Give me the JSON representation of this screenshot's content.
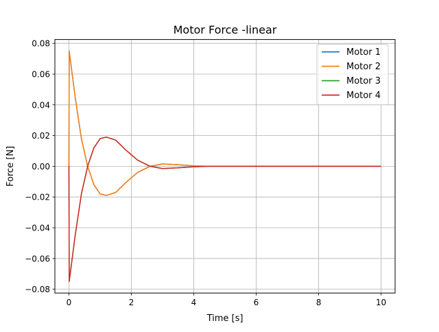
{
  "chart_data": {
    "type": "line",
    "title": "Motor Force -linear",
    "xlabel": "Time [s]",
    "ylabel": "Force [N]",
    "xlim": [
      -0.45,
      10.45
    ],
    "ylim": [
      -0.0825,
      0.0825
    ],
    "x_ticks": [
      {
        "value": 0,
        "label": "0"
      },
      {
        "value": 2,
        "label": "2"
      },
      {
        "value": 4,
        "label": "4"
      },
      {
        "value": 6,
        "label": "6"
      },
      {
        "value": 8,
        "label": "8"
      },
      {
        "value": 10,
        "label": "10"
      }
    ],
    "y_ticks": [
      {
        "value": -0.08,
        "label": "−0.08"
      },
      {
        "value": -0.06,
        "label": "−0.06"
      },
      {
        "value": -0.04,
        "label": "−0.04"
      },
      {
        "value": -0.02,
        "label": "−0.02"
      },
      {
        "value": 0.0,
        "label": "0.00"
      },
      {
        "value": 0.02,
        "label": "0.02"
      },
      {
        "value": 0.04,
        "label": "0.04"
      },
      {
        "value": 0.06,
        "label": "0.06"
      },
      {
        "value": 0.08,
        "label": "0.08"
      }
    ],
    "grid": true,
    "legend_position": "top-right",
    "series": [
      {
        "name": "Motor 1",
        "color": "#1f77b4",
        "x": [
          0,
          0.01,
          0.2,
          0.4,
          0.6,
          0.8,
          1.0,
          1.2,
          1.5,
          1.8,
          2.2,
          2.6,
          3.0,
          3.5,
          4.0,
          4.5,
          5.0,
          6.0,
          7.0,
          8.0,
          9.0,
          10.0
        ],
        "y": [
          0,
          0.075,
          0.045,
          0.018,
          0.0,
          -0.012,
          -0.018,
          -0.019,
          -0.017,
          -0.011,
          -0.004,
          0.0,
          0.0015,
          0.001,
          0.0003,
          0.0,
          0.0,
          0.0,
          0.0,
          0.0,
          0.0,
          0.0
        ]
      },
      {
        "name": "Motor 2",
        "color": "#ff7f0e",
        "x": [
          0,
          0.01,
          0.2,
          0.4,
          0.6,
          0.8,
          1.0,
          1.2,
          1.5,
          1.8,
          2.2,
          2.6,
          3.0,
          3.5,
          4.0,
          4.5,
          5.0,
          6.0,
          7.0,
          8.0,
          9.0,
          10.0
        ],
        "y": [
          0,
          0.075,
          0.045,
          0.018,
          0.0,
          -0.012,
          -0.018,
          -0.019,
          -0.017,
          -0.011,
          -0.004,
          0.0,
          0.0015,
          0.001,
          0.0003,
          0.0,
          0.0,
          0.0,
          0.0,
          0.0,
          0.0,
          0.0
        ]
      },
      {
        "name": "Motor 3",
        "color": "#2ca02c",
        "x": [
          0,
          0.01,
          0.2,
          0.4,
          0.6,
          0.8,
          1.0,
          1.2,
          1.5,
          1.8,
          2.2,
          2.6,
          3.0,
          3.5,
          4.0,
          4.5,
          5.0,
          6.0,
          7.0,
          8.0,
          9.0,
          10.0
        ],
        "y": [
          0,
          -0.075,
          -0.045,
          -0.018,
          0.0,
          0.012,
          0.018,
          0.019,
          0.017,
          0.011,
          0.004,
          0.0,
          -0.0015,
          -0.001,
          -0.0003,
          0.0,
          0.0,
          0.0,
          0.0,
          0.0,
          0.0,
          0.0
        ]
      },
      {
        "name": "Motor 4",
        "color": "#d62728",
        "x": [
          0,
          0.01,
          0.2,
          0.4,
          0.6,
          0.8,
          1.0,
          1.2,
          1.5,
          1.8,
          2.2,
          2.6,
          3.0,
          3.5,
          4.0,
          4.5,
          5.0,
          6.0,
          7.0,
          8.0,
          9.0,
          10.0
        ],
        "y": [
          0,
          -0.075,
          -0.045,
          -0.018,
          0.0,
          0.012,
          0.018,
          0.019,
          0.017,
          0.011,
          0.004,
          0.0,
          -0.0015,
          -0.001,
          -0.0003,
          0.0,
          0.0,
          0.0,
          0.0,
          0.0,
          0.0,
          0.0
        ]
      }
    ]
  }
}
